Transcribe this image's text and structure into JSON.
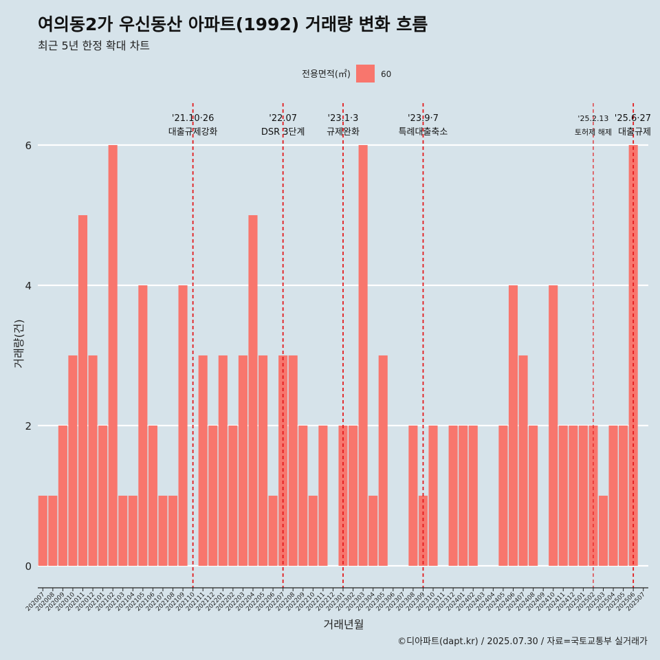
{
  "header": {
    "title": "여의동2가 우신동산 아파트(1992) 거래량 변화 흐름",
    "subtitle": "최근 5년 한정 확대 차트"
  },
  "caption": "©디아파트(dapt.kr) / 2025.07.30 / 자료=국토교통부 실거래가",
  "colors": {
    "bar": "#f8766d",
    "background": "#d6e3ea",
    "gridline": "#ffffff",
    "event_line": "#e3191c"
  },
  "chart_data": {
    "type": "bar",
    "xlabel": "거래년월",
    "ylabel": "거래량(건)",
    "ylim": [
      0,
      6.3
    ],
    "yticks": [
      0,
      2,
      4,
      6
    ],
    "grid": "horizontal",
    "legend": {
      "title": "전용면적(㎡)",
      "position": "top",
      "entries": [
        {
          "label": "60",
          "color": "#f8766d"
        }
      ]
    },
    "categories": [
      "202007",
      "202008",
      "202009",
      "202010",
      "202011",
      "202012",
      "202101",
      "202102",
      "202103",
      "202104",
      "202105",
      "202106",
      "202107",
      "202108",
      "202109",
      "202110",
      "202111",
      "202112",
      "202201",
      "202202",
      "202203",
      "202204",
      "202205",
      "202206",
      "202207",
      "202208",
      "202209",
      "202210",
      "202211",
      "202212",
      "202301",
      "202302",
      "202303",
      "202304",
      "202305",
      "202306",
      "202307",
      "202308",
      "202309",
      "202310",
      "202311",
      "202312",
      "202401",
      "202402",
      "202403",
      "202404",
      "202405",
      "202406",
      "202407",
      "202408",
      "202409",
      "202410",
      "202411",
      "202412",
      "202501",
      "202502",
      "202503",
      "202504",
      "202505",
      "202506",
      "202507"
    ],
    "series": [
      {
        "values": [
          1,
          1,
          2,
          3,
          5,
          3,
          2,
          6,
          1,
          1,
          4,
          2,
          1,
          1,
          4,
          0,
          3,
          2,
          3,
          2,
          3,
          5,
          3,
          1,
          3,
          3,
          2,
          1,
          2,
          0,
          2,
          2,
          6,
          1,
          3,
          0,
          0,
          2,
          1,
          2,
          0,
          2,
          2,
          2,
          0,
          0,
          2,
          4,
          3,
          2,
          0,
          4,
          2,
          2,
          2,
          2,
          1,
          2,
          2,
          6,
          0
        ]
      }
    ],
    "events": [
      {
        "date": "'21.10·26",
        "label": "대출규제강화",
        "at": "202110",
        "style": "dashed-bold"
      },
      {
        "date": "'22.07",
        "label": "DSR 3단계",
        "at": "202207",
        "style": "dashed-bold"
      },
      {
        "date": "'23.1·3",
        "label": "규제완화",
        "at": "202301",
        "style": "dashed-bold"
      },
      {
        "date": "'23.9·7",
        "label": "특례대출축소",
        "at": "202309",
        "style": "dashed-bold"
      },
      {
        "date": "'25.2.13",
        "label": "토허제 해제",
        "at": "202502",
        "style": "dashed-thin"
      },
      {
        "date": "'25.6·27",
        "label": "대출규제",
        "at": "202506",
        "style": "dashed-bold"
      }
    ]
  }
}
